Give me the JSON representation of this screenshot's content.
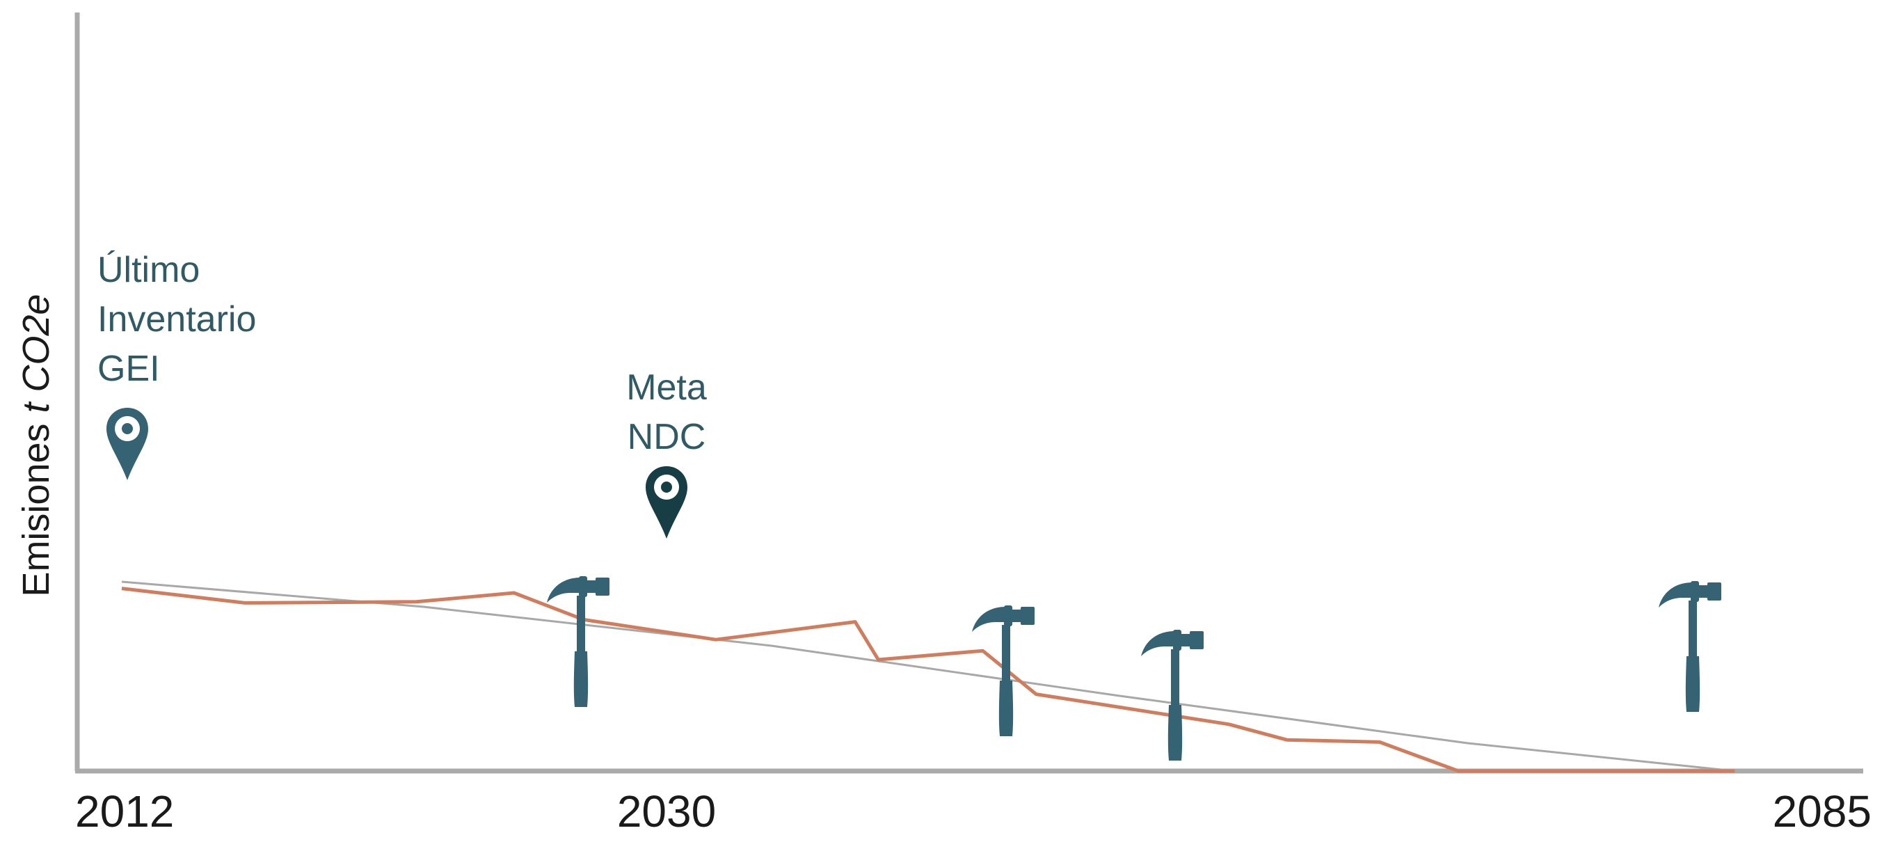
{
  "colors": {
    "axis": "#aaaaaa",
    "emissions_line": "#d17c5d",
    "trend_line": "#a8a8a8",
    "marker_light": "#356373",
    "marker_dark": "#173d45",
    "hammer": "#356373",
    "annotation_text": "#2f5a66"
  },
  "chart_data": {
    "type": "line",
    "x_axis": {
      "ticks": [
        "2012",
        "2030",
        "2085"
      ],
      "tick_values": [
        2012,
        2030,
        2085
      ],
      "range": [
        2012,
        2085
      ]
    },
    "y_axis": {
      "label_prefix": "Emisiones ",
      "label_unit": "t CO2e",
      "range": [
        0,
        100
      ],
      "tick_labels": false
    },
    "grid": false,
    "series": [
      {
        "style": "emissions",
        "x": [
          2012,
          2017.3,
          2024.7,
          2028.9,
          2031.9,
          2037.6,
          2043.6,
          2044.6,
          2049.1,
          2051.4,
          2059.7,
          2062.2,
          2066.2,
          2069.6,
          2081.5
        ],
        "y": [
          32.8,
          30.2,
          30.4,
          32.0,
          27.2,
          23.6,
          26.8,
          20.0,
          21.6,
          13.8,
          8.4,
          5.6,
          5.2,
          0.0,
          0.0
        ]
      },
      {
        "style": "trend",
        "x": [
          2012,
          2025,
          2040,
          2055,
          2070,
          2081.5
        ],
        "y": [
          34.0,
          29.5,
          22.5,
          13.5,
          5.0,
          0.0
        ]
      }
    ],
    "annotations": [
      {
        "type": "marker",
        "variant": "light",
        "x": 2013.5,
        "lines": [
          "Último",
          "Inventario",
          "GEI"
        ],
        "icon": "map-pin-icon"
      },
      {
        "type": "marker",
        "variant": "dark",
        "x": 2030,
        "lines": [
          "Meta",
          "NDC"
        ],
        "icon": "map-pin-icon"
      }
    ],
    "hammers": [
      {
        "x": 2028.5,
        "icon": "hammer-icon"
      },
      {
        "x": 2042.6,
        "icon": "hammer-icon"
      },
      {
        "x": 2048.2,
        "icon": "hammer-icon"
      },
      {
        "x": 2078.2,
        "icon": "hammer-icon"
      }
    ]
  }
}
